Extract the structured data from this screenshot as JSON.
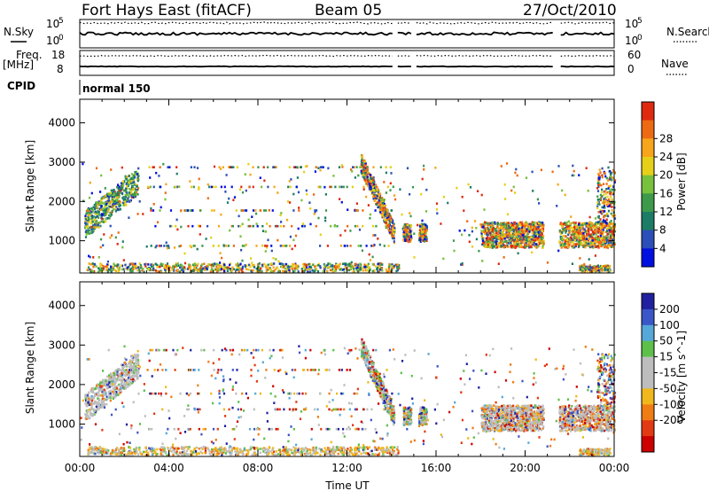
{
  "header": {
    "station": "Fort Hays East (fitACF)",
    "beam": "Beam 05",
    "date": "27/Oct/2010"
  },
  "side_labels": {
    "nsky": "N.Sky",
    "nsearch": "N.Search",
    "freq": "Freq.",
    "mhz": "[MHz]",
    "nave": "Nave",
    "cpid": "CPID",
    "cpid_value": "normal 150"
  },
  "noise_panel": {
    "left_ticks": [
      {
        "base": "10",
        "exp": "5"
      },
      {
        "base": "10",
        "exp": "0"
      }
    ],
    "right_ticks": [
      {
        "base": "10",
        "exp": "5"
      },
      {
        "base": "10",
        "exp": "0"
      }
    ]
  },
  "freq_panel": {
    "left_ticks": [
      "18",
      "8"
    ],
    "right_ticks": [
      "60",
      "0"
    ]
  },
  "colors": {
    "power": [
      "#0010e0",
      "#2a4fb8",
      "#1c7c66",
      "#3c9a4a",
      "#77c13c",
      "#e6cf18",
      "#f7a51a",
      "#ee6a12",
      "#e02a10"
    ],
    "velocity": [
      "#2020a0",
      "#3a56c8",
      "#55a8d8",
      "#5cc04a",
      "#bdbdbd",
      "#bdbdbd",
      "#f0b81c",
      "#f07c14",
      "#e23a12",
      "#cc0000"
    ]
  },
  "chart_data": [
    {
      "type": "heatmap",
      "name": "power",
      "x_range": [
        "00:00",
        "00:00"
      ],
      "x_ticks": [
        "00:00",
        "04:00",
        "08:00",
        "12:00",
        "16:00",
        "20:00",
        "00:00"
      ],
      "ylabel": "Slant Range [km]",
      "y_ticks": [
        1000,
        2000,
        3000,
        4000
      ],
      "ylim": [
        180,
        4600
      ],
      "colorbar_label": "Power [dB]",
      "colorbar_ticks": [
        "4",
        "8",
        "12",
        "16",
        "20",
        "24",
        "28"
      ],
      "colorbar_range": [
        0,
        30
      ]
    },
    {
      "type": "heatmap",
      "name": "velocity",
      "x_range": [
        "00:00",
        "00:00"
      ],
      "x_ticks": [
        "00:00",
        "04:00",
        "08:00",
        "12:00",
        "16:00",
        "20:00",
        "00:00"
      ],
      "xlabel": "Time UT",
      "ylabel": "Slant Range [km]",
      "y_ticks": [
        1000,
        2000,
        3000,
        4000
      ],
      "ylim": [
        180,
        4600
      ],
      "colorbar_label": "Velocity [m s^-1]",
      "colorbar_ticks": [
        "200",
        "100",
        "50",
        "15",
        "-15",
        "-50",
        "-100",
        "-200"
      ],
      "colorbar_range": [
        -250,
        250
      ]
    }
  ]
}
